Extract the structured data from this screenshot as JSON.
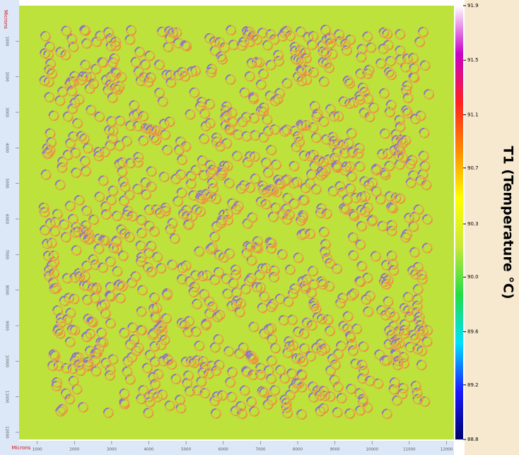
{
  "chart_data": {
    "type": "heatmap-image",
    "colorbar_label": "T1 (Temperature °C)",
    "clim": [
      88.8,
      91.9
    ],
    "colors": [
      "#00006e",
      "#1a1aff",
      "#00e0ff",
      "#22dd44",
      "#c8e83a",
      "#ffff00",
      "#ff8a00",
      "#ff2020",
      "#c800c8",
      "#ffffff"
    ],
    "cticks": [
      91.9,
      {
        "value": 91.51,
        "label": "91.5"
      },
      {
        "value": 91.12,
        "label": "91.1"
      },
      {
        "value": 90.74,
        "label": "90.7"
      },
      {
        "value": 90.34,
        "label": "90.3"
      },
      {
        "value": 89.96,
        "label": "90.0"
      },
      {
        "value": 89.57,
        "label": "89.6"
      },
      {
        "value": 89.19,
        "label": "89.2"
      },
      88.8
    ],
    "xlabel": "Microns",
    "ylabel": "Microns",
    "xlim": [
      0,
      12200
    ],
    "ylim": [
      0,
      12200
    ],
    "xticks": [
      1000,
      2000,
      3000,
      4000,
      5000,
      6000,
      7000,
      8000,
      9000,
      10000,
      11000,
      12000
    ],
    "yticks": [
      1000,
      2000,
      3000,
      4000,
      5000,
      6000,
      7000,
      8000,
      9000,
      10000,
      11000,
      12000
    ]
  }
}
